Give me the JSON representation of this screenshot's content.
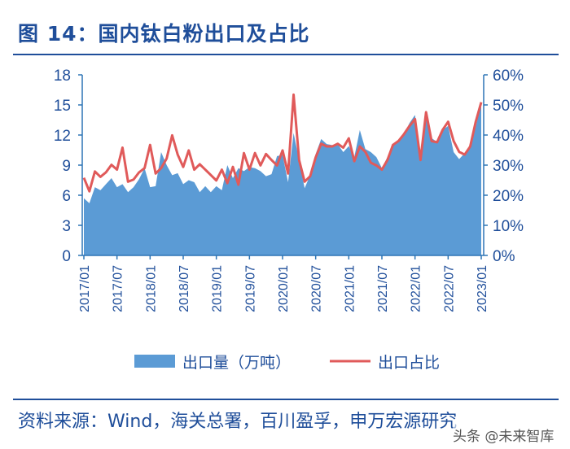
{
  "title": "图 14：国内钛白粉出口及占比",
  "source": "资料来源：Wind，海关总署，百川盈孚，申万宏源研究",
  "watermark": "头条 @未来智库",
  "colors": {
    "area": "#5b9bd5",
    "line": "#e05a5a",
    "axis": "#2e75b6",
    "text": "#1f4e9a"
  },
  "chart_data": {
    "type": "area+line",
    "x_start": "2017/01",
    "x_end": "2023/01",
    "tick_labels": [
      "2017/01",
      "2017/07",
      "2018/01",
      "2018/07",
      "2019/01",
      "2019/07",
      "2020/01",
      "2020/07",
      "2021/01",
      "2021/07",
      "2022/01",
      "2022/07",
      "2023/01"
    ],
    "left_axis": {
      "label": "出口量（万吨）",
      "ylim": [
        0,
        18
      ],
      "ticks": [
        "0",
        "3",
        "6",
        "9",
        "12",
        "15",
        "18"
      ]
    },
    "right_axis": {
      "label": "出口占比",
      "ylim": [
        0,
        60
      ],
      "ticks": [
        "0%",
        "10%",
        "20%",
        "30%",
        "40%",
        "50%",
        "60%"
      ]
    },
    "legend": {
      "placement": "bottom",
      "entries": [
        "出口量（万吨）",
        "出口占比"
      ]
    },
    "series": [
      {
        "name": "出口量（万吨）",
        "axis": "left",
        "kind": "area",
        "values": [
          5.7,
          5.2,
          6.8,
          6.5,
          7.1,
          7.7,
          6.8,
          7.1,
          6.3,
          6.8,
          7.6,
          8.7,
          6.8,
          6.9,
          10.3,
          9.0,
          8.0,
          8.2,
          7.1,
          7.5,
          7.3,
          6.3,
          6.9,
          6.3,
          6.9,
          6.5,
          9.0,
          7.7,
          8.7,
          8.4,
          8.8,
          8.7,
          8.4,
          7.9,
          8.1,
          9.9,
          10.0,
          7.3,
          12.2,
          9.5,
          6.7,
          8.0,
          10.1,
          11.6,
          11.1,
          11.0,
          11.1,
          10.3,
          10.9,
          9.8,
          12.5,
          10.6,
          10.3,
          9.8,
          8.7,
          9.8,
          11.1,
          11.5,
          12.1,
          13.2,
          14.0,
          9.5,
          14.1,
          11.7,
          11.3,
          12.5,
          12.9,
          10.3,
          9.6,
          10.2,
          10.9,
          12.8,
          15.2
        ]
      },
      {
        "name": "出口占比",
        "axis": "right",
        "kind": "line",
        "values": [
          25.8,
          21.3,
          27.9,
          26.1,
          27.6,
          30.1,
          28.5,
          35.8,
          24.5,
          25.2,
          27.6,
          29.0,
          36.7,
          27.2,
          29.0,
          32.2,
          39.9,
          33.5,
          29.4,
          34.9,
          28.5,
          30.3,
          28.5,
          26.7,
          24.9,
          28.5,
          24.0,
          29.4,
          23.5,
          34.0,
          28.5,
          34.0,
          29.9,
          33.7,
          31.7,
          29.9,
          34.9,
          27.2,
          53.4,
          31.7,
          24.5,
          26.3,
          32.6,
          37.1,
          36.2,
          36.2,
          37.1,
          35.8,
          38.9,
          31.3,
          36.2,
          34.4,
          30.8,
          29.9,
          28.5,
          31.7,
          36.7,
          38.0,
          40.3,
          43.0,
          45.3,
          31.7,
          47.6,
          38.0,
          37.6,
          41.7,
          44.4,
          38.0,
          34.4,
          33.5,
          36.2,
          44.4,
          50.9
        ]
      }
    ]
  }
}
